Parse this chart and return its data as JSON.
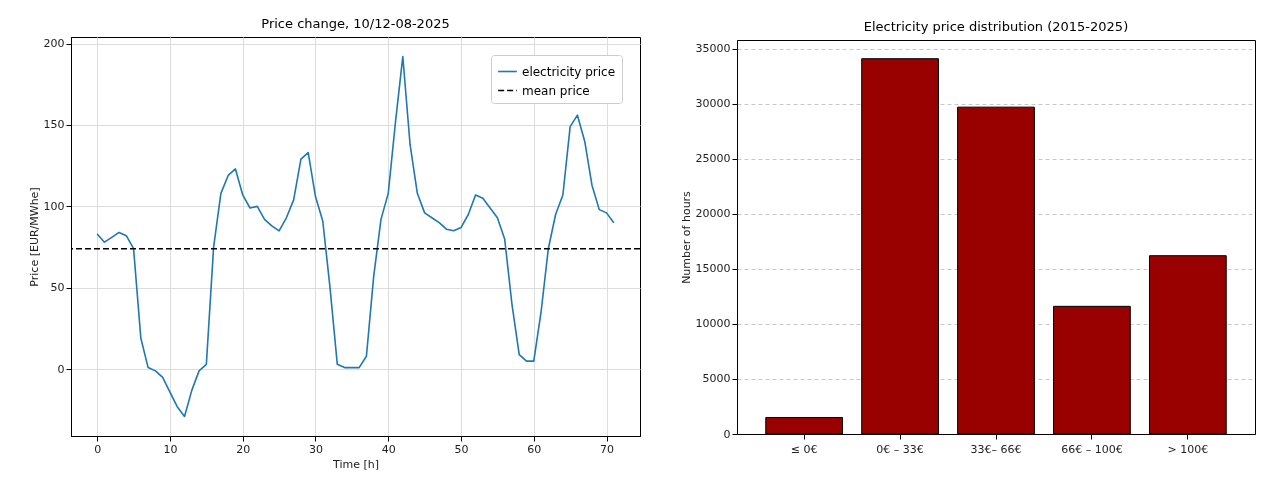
{
  "chart_data": [
    {
      "type": "line",
      "title": "Price change, 10/12-08-2025",
      "xlabel": "Time [h]",
      "ylabel": "Price [EUR/MWhe]",
      "x": [
        0,
        1,
        2,
        3,
        4,
        5,
        6,
        7,
        8,
        9,
        10,
        11,
        12,
        13,
        14,
        15,
        16,
        17,
        18,
        19,
        20,
        21,
        22,
        23,
        24,
        25,
        26,
        27,
        28,
        29,
        30,
        31,
        32,
        33,
        34,
        35,
        36,
        37,
        38,
        39,
        40,
        41,
        42,
        43,
        44,
        45,
        46,
        47,
        48,
        49,
        50,
        51,
        52,
        53,
        54,
        55,
        56,
        57,
        58,
        59,
        60,
        61,
        62,
        63,
        64,
        65,
        66,
        67,
        68,
        69,
        70,
        71
      ],
      "series": [
        {
          "name": "electricity price",
          "color": "#1f77b4",
          "values": [
            83,
            78,
            81,
            84,
            82,
            74,
            19,
            1,
            -1,
            -5,
            -14,
            -23,
            -29,
            -13,
            -1,
            3,
            75,
            108,
            119,
            123,
            107,
            99,
            100,
            92,
            88,
            85,
            93,
            104,
            129,
            133,
            106,
            91,
            50,
            3,
            1,
            1,
            1,
            8,
            57,
            92,
            108,
            152,
            192,
            138,
            108,
            96,
            93,
            90,
            86,
            85,
            87,
            95,
            107,
            105,
            99,
            93,
            80,
            40,
            9,
            5,
            5,
            35,
            74,
            95,
            107,
            149,
            156,
            140,
            113,
            98,
            96,
            90
          ]
        }
      ],
      "ref_lines": [
        {
          "axis": "y",
          "value": 74,
          "label": "mean price",
          "color": "#000000",
          "line_style": "dashed"
        }
      ],
      "xlim": [
        -3.6,
        74.6
      ],
      "ylim": [
        -41,
        204
      ],
      "xticks": [
        0,
        10,
        20,
        30,
        40,
        50,
        60,
        70
      ],
      "yticks": [
        0,
        50,
        100,
        150,
        200
      ],
      "grid": true,
      "legend": "top right"
    },
    {
      "type": "bar",
      "title": "Electricity price distribution (2015-2025)",
      "ylabel": "Number of hours",
      "categories": [
        "≤ 0€",
        "0€ – 33€",
        "33€– 66€",
        "66€ – 100€",
        "> 100€"
      ],
      "values": [
        1500,
        34100,
        29700,
        11600,
        16200
      ],
      "color": "#990000",
      "ylim": [
        0,
        35800
      ],
      "yticks": [
        0,
        5000,
        10000,
        15000,
        20000,
        25000,
        30000,
        35000
      ],
      "grid": "y"
    }
  ]
}
